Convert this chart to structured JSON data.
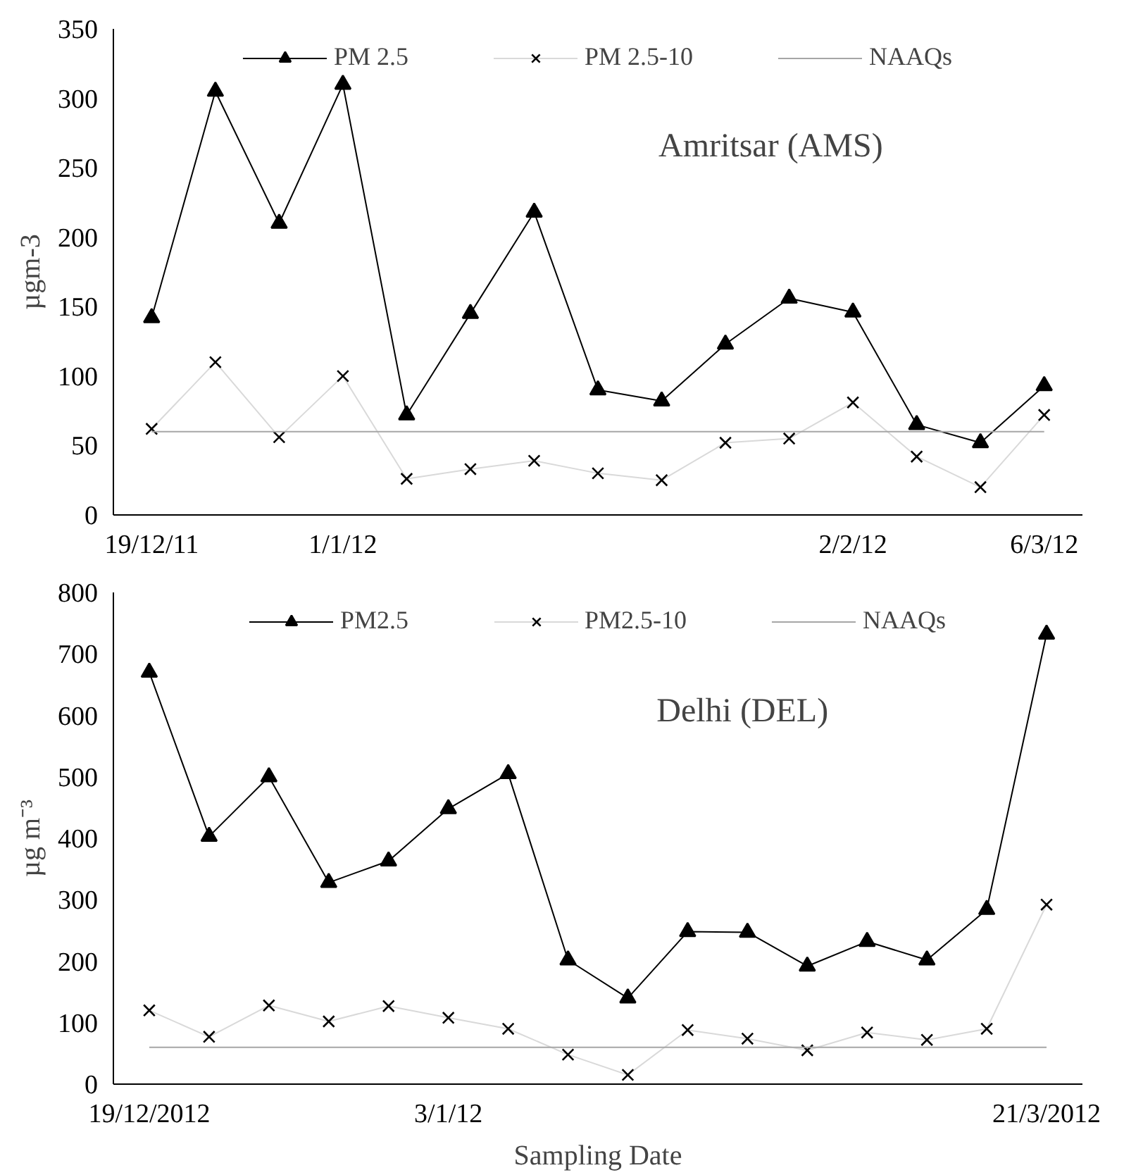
{
  "chart_data": [
    {
      "type": "line",
      "annotations": [
        "Amritsar (AMS)"
      ],
      "ylabel": "µgm-3",
      "categories": [
        "19/12/11",
        null,
        null,
        "1/1/12",
        null,
        null,
        null,
        null,
        null,
        null,
        null,
        "2/2/12",
        null,
        null,
        "6/3/12"
      ],
      "series": [
        {
          "name": "PM 2.5",
          "color": "#000000",
          "marker": "triangle",
          "values": [
            142,
            305,
            210,
            310,
            72,
            145,
            218,
            90,
            82,
            123,
            156,
            146,
            65,
            52,
            93
          ]
        },
        {
          "name": "PM 2.5-10",
          "color": "#d9d9d9",
          "marker": "cross",
          "values": [
            62,
            110,
            56,
            100,
            26,
            33,
            39,
            30,
            25,
            52,
            55,
            81,
            42,
            20,
            72
          ]
        },
        {
          "name": "NAAQs",
          "color": "#a6a6a6",
          "marker": "none",
          "values": [
            60,
            60,
            60,
            60,
            60,
            60,
            60,
            60,
            60,
            60,
            60,
            60,
            60,
            60,
            60
          ]
        }
      ],
      "ylim": [
        0,
        350
      ],
      "yticks": [
        0,
        50,
        100,
        150,
        200,
        250,
        300,
        350
      ],
      "grid": false,
      "legend": "top"
    },
    {
      "type": "line",
      "annotations": [
        "Delhi (DEL)"
      ],
      "ylabel": "µg m⁻³",
      "xlabel": "Sampling Date",
      "categories": [
        "19/12/2012",
        null,
        null,
        null,
        null,
        "3/1/12",
        null,
        null,
        null,
        null,
        null,
        null,
        null,
        null,
        null,
        "21/3/2012"
      ],
      "series": [
        {
          "name": "PM2.5",
          "color": "#000000",
          "marker": "triangle",
          "values": [
            670,
            403,
            500,
            328,
            363,
            448,
            505,
            202,
            140,
            248,
            247,
            192,
            232,
            202,
            284,
            732
          ]
        },
        {
          "name": "PM2.5-10",
          "color": "#d9d9d9",
          "marker": "cross",
          "values": [
            120,
            77,
            128,
            102,
            127,
            108,
            90,
            48,
            15,
            88,
            74,
            55,
            84,
            72,
            90,
            292
          ]
        },
        {
          "name": "NAAQs",
          "color": "#a6a6a6",
          "marker": "none",
          "values": [
            60,
            60,
            60,
            60,
            60,
            60,
            60,
            60,
            60,
            60,
            60,
            60,
            60,
            60,
            60,
            60
          ]
        }
      ],
      "ylim": [
        0,
        800
      ],
      "yticks": [
        0,
        100,
        200,
        300,
        400,
        500,
        600,
        700,
        800
      ],
      "grid": false,
      "legend": "top"
    }
  ]
}
